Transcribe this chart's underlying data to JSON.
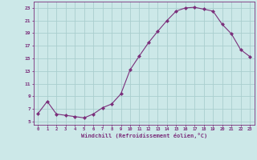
{
  "x": [
    0,
    1,
    2,
    3,
    4,
    5,
    6,
    7,
    8,
    9,
    10,
    11,
    12,
    13,
    14,
    15,
    16,
    17,
    18,
    19,
    20,
    21,
    22,
    23
  ],
  "y": [
    6.3,
    8.2,
    6.2,
    6.0,
    5.8,
    5.6,
    6.2,
    7.2,
    7.8,
    9.4,
    13.2,
    15.4,
    17.5,
    19.3,
    21.0,
    22.5,
    23.0,
    23.1,
    22.8,
    22.5,
    20.4,
    18.9,
    16.4,
    15.3
  ],
  "line_color": "#7b2f7b",
  "marker": "D",
  "marker_size": 2.0,
  "bg_color": "#cce8e8",
  "grid_color": "#aacece",
  "ylabel_ticks": [
    5,
    7,
    9,
    11,
    13,
    15,
    17,
    19,
    21,
    23
  ],
  "ylim": [
    4.5,
    24.0
  ],
  "xlim": [
    -0.5,
    23.5
  ],
  "xlabel": "Windchill (Refroidissement éolien,°C)",
  "tick_color": "#7b2f7b",
  "font": "monospace"
}
